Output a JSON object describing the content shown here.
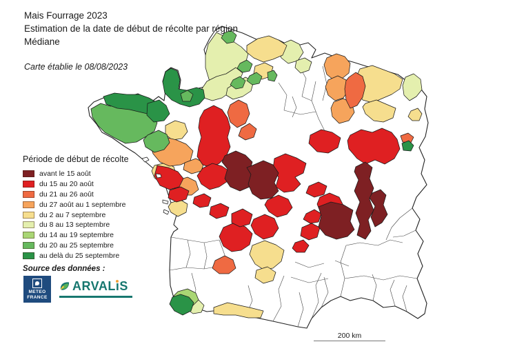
{
  "header": {
    "title_line1": "Mais Fourrage 2023",
    "title_line2": "Estimation de la date de début de récolte par région",
    "title_line3": "Médiane",
    "date_note": "Carte établie le 08/08/2023"
  },
  "legend": {
    "title": "Période de début de récolte",
    "items": [
      {
        "label": "avant le 15 août",
        "color": "#7E2023"
      },
      {
        "label": "du 15 au 20 août",
        "color": "#DF2022"
      },
      {
        "label": "du 21 au 26 août",
        "color": "#EF6A42"
      },
      {
        "label": "du 27 août au 1 septembre",
        "color": "#F6A45C"
      },
      {
        "label": "du 2 au 7 septembre",
        "color": "#F6DE8E"
      },
      {
        "label": "du 8 au 13 septembre",
        "color": "#E4EFAE"
      },
      {
        "label": "du 14 au 19 septembre",
        "color": "#A9D674"
      },
      {
        "label": "du 20 au 25 septembre",
        "color": "#66B95E"
      },
      {
        "label": "au delà du 25 septembre",
        "color": "#2A9347"
      }
    ]
  },
  "source": {
    "label": "Source des données :",
    "meteo_france": {
      "line1": "METEO",
      "line2": "FRANCE",
      "bg_color": "#1F4B7E"
    },
    "arvalis": {
      "text_main": "ARVAL",
      "text_i": "ı",
      "text_s": "S",
      "color": "#17776F",
      "dot_color": "#F2A33C"
    }
  },
  "scale_bar": {
    "label": "200 km"
  },
  "map": {
    "no_data_color": "#FFFFFF",
    "border_color": "#1a1a1a",
    "regions": [
      {
        "name": "hauts-de-france-base",
        "category": 5
      },
      {
        "name": "normandie-est",
        "category": 5
      },
      {
        "name": "picardie-sud",
        "category": 5
      },
      {
        "name": "aisne-pale-1",
        "category": 5
      },
      {
        "name": "aisne-pale-2",
        "category": 5
      },
      {
        "name": "alsace-nord",
        "category": 5
      },
      {
        "name": "bearn-sud",
        "category": 5
      },
      {
        "name": "nord-est-jaune",
        "category": 4
      },
      {
        "name": "oise-jaune",
        "category": 4
      },
      {
        "name": "lorraine-jaune-1",
        "category": 4
      },
      {
        "name": "lorraine-jaune-2",
        "category": 4
      },
      {
        "name": "alsace-jaune",
        "category": 4
      },
      {
        "name": "rennes-sud-est-jaune",
        "category": 4
      },
      {
        "name": "loire-sud-jaune",
        "category": 4
      },
      {
        "name": "marais-poitevin-jaune",
        "category": 4
      },
      {
        "name": "pyrenees-jaune",
        "category": 4
      },
      {
        "name": "tarn-jaune-1",
        "category": 4
      },
      {
        "name": "tarn-jaune-2",
        "category": 4
      },
      {
        "name": "champagne-orange",
        "category": 3
      },
      {
        "name": "lorraine-ouest-orange",
        "category": 3
      },
      {
        "name": "lorraine-sud-orange",
        "category": 3
      },
      {
        "name": "maine-orange",
        "category": 3
      },
      {
        "name": "anjou-orange",
        "category": 3
      },
      {
        "name": "vendee-sud-orange",
        "category": 3
      },
      {
        "name": "bretagne-centre",
        "category": 7
      },
      {
        "name": "bretagne-sud-est",
        "category": 7
      },
      {
        "name": "bretagne-cote-nord",
        "category": 8
      },
      {
        "name": "bretagne-nord-est",
        "category": 8
      },
      {
        "name": "normandie-ouest",
        "category": 8
      },
      {
        "name": "normandie-sud-vert",
        "category": 7
      },
      {
        "name": "flandre-vert",
        "category": 7
      },
      {
        "name": "artois-vert-1",
        "category": 7
      },
      {
        "name": "artois-vert-2",
        "category": 7
      },
      {
        "name": "somme-vert",
        "category": 7
      },
      {
        "name": "ile-de-france-vert",
        "category": 7
      },
      {
        "name": "bearn-vert",
        "category": 6
      },
      {
        "name": "pays-basque",
        "category": 8
      },
      {
        "name": "lorraine-coeur",
        "category": 2
      },
      {
        "name": "perche-orange-1",
        "category": 2
      },
      {
        "name": "perche-orange-2",
        "category": 2
      },
      {
        "name": "cantal-orange",
        "category": 2
      },
      {
        "name": "alsace-sud-orange",
        "category": 2
      },
      {
        "name": "alsace-sud-vert",
        "category": 8
      },
      {
        "name": "sarthe-rouge",
        "category": 1
      },
      {
        "name": "touraine-ouest-rouge",
        "category": 1
      },
      {
        "name": "blois-rouge",
        "category": 1
      },
      {
        "name": "vendee-rouge-1",
        "category": 1
      },
      {
        "name": "vendee-rouge-2",
        "category": 1
      },
      {
        "name": "poitou-rouge",
        "category": 1
      },
      {
        "name": "poitou-sud-rouge",
        "category": 1
      },
      {
        "name": "berry-rouge",
        "category": 1
      },
      {
        "name": "bourgogne-rouge-1",
        "category": 1
      },
      {
        "name": "bourgogne-rouge-2",
        "category": 1
      },
      {
        "name": "allier-rouge",
        "category": 1
      },
      {
        "name": "lyonnais-rouge-1",
        "category": 1
      },
      {
        "name": "lyonnais-rouge-2",
        "category": 1
      },
      {
        "name": "forez-rouge",
        "category": 1
      },
      {
        "name": "drome-rouge-1",
        "category": 1
      },
      {
        "name": "drome-rouge-2",
        "category": 1
      },
      {
        "name": "correze-rouge",
        "category": 1
      },
      {
        "name": "haute-vienne-rouge",
        "category": 1
      },
      {
        "name": "creuse-rouge",
        "category": 1
      },
      {
        "name": "limousin-est-rouge",
        "category": 1
      },
      {
        "name": "touraine-noir",
        "category": 0
      },
      {
        "name": "berry-noir",
        "category": 0
      },
      {
        "name": "auvergne-noir",
        "category": 0
      },
      {
        "name": "rhone-noir",
        "category": 0
      },
      {
        "name": "ardeche-noir",
        "category": 0
      },
      {
        "name": "ile-belle-ile",
        "category": null
      },
      {
        "name": "ile-noirmoutier",
        "category": null
      },
      {
        "name": "ile-de-re",
        "category": null
      },
      {
        "name": "ile-oleron",
        "category": null
      }
    ]
  }
}
